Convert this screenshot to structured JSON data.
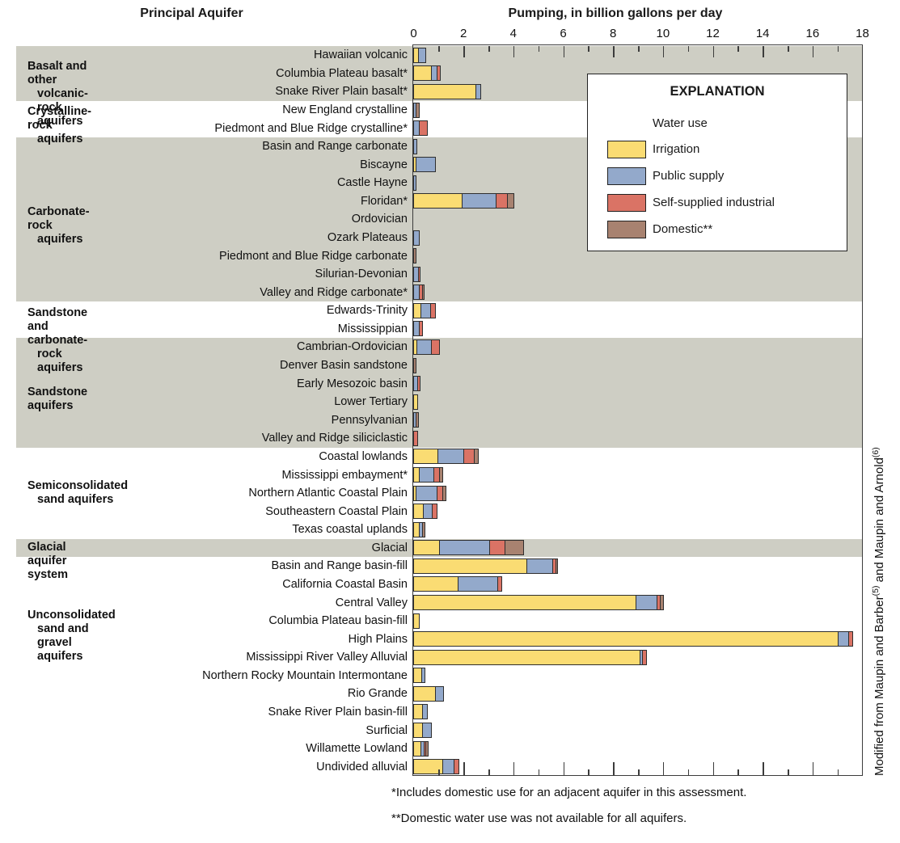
{
  "titles": {
    "left": "Principal Aquifer",
    "right": "Pumping, in billion gallons per day"
  },
  "legend": {
    "title": "EXPLANATION",
    "subtitle": "Water use",
    "items": [
      {
        "label": "Irrigation",
        "color": "#FADC73"
      },
      {
        "label": "Public supply",
        "color": "#93A9CB"
      },
      {
        "label": "Self-supplied industrial",
        "color": "#DA7365"
      },
      {
        "label": "Domestic**",
        "color": "#A88270"
      }
    ]
  },
  "footnotes": [
    "*Includes domestic use for an adjacent aquifer in this assessment.",
    "**Domestic water use was not available for all aquifers."
  ],
  "citation": {
    "parts": [
      {
        "text": "Modified from Maupin and Barber",
        "sup": false
      },
      {
        "text": "(5)",
        "sup": true
      },
      {
        "text": " and Maupin and Arnold",
        "sup": false
      },
      {
        "text": "(6)",
        "sup": true
      }
    ]
  },
  "chart_data": {
    "type": "bar",
    "orientation": "horizontal",
    "stacked": true,
    "title": "",
    "xlabel": "Pumping, in billion gallons per day",
    "ylabel": "Principal Aquifer",
    "xlim": [
      0,
      18
    ],
    "xtick_label_step": 2,
    "xtick_minor_step": 1,
    "grid": false,
    "legend_position": "upper-right-inside",
    "band_color": "#CECEC4",
    "series_names": [
      "Irrigation",
      "Public supply",
      "Self-supplied industrial",
      "Domestic**"
    ],
    "series_colors": [
      "#FADC73",
      "#93A9CB",
      "#DA7365",
      "#A88270"
    ],
    "value_units": "billion gallons per day",
    "groups": [
      {
        "label_lines": [
          "Basalt and other",
          "volcanic-rock aquifers"
        ],
        "shaded": true,
        "rows": [
          {
            "label": "Hawaiian volcanic",
            "values": [
              0.15,
              0.27,
              0,
              0
            ]
          },
          {
            "label": "Columbia Plateau basalt*",
            "values": [
              0.68,
              0.2,
              0.08,
              0
            ]
          },
          {
            "label": "Snake River Plain basalt*",
            "values": [
              2.45,
              0.17,
              0,
              0
            ]
          }
        ]
      },
      {
        "label_lines": [
          "Crystalline-rock",
          "aquifers"
        ],
        "shaded": false,
        "rows": [
          {
            "label": "New England crystalline",
            "values": [
              0,
              0.05,
              0,
              0.1
            ]
          },
          {
            "label": "Piedmont and Blue Ridge crystalline*",
            "values": [
              0,
              0.2,
              0.28,
              0
            ]
          }
        ]
      },
      {
        "label_lines": [
          "Carbonate-rock",
          "aquifers"
        ],
        "shaded": true,
        "rows": [
          {
            "label": "Basin and Range carbonate",
            "values": [
              0,
              0.1,
              0,
              0
            ]
          },
          {
            "label": "Biscayne",
            "values": [
              0.08,
              0.73,
              0,
              0
            ]
          },
          {
            "label": "Castle Hayne",
            "values": [
              0,
              0.05,
              0,
              0
            ]
          },
          {
            "label": "Floridan*",
            "values": [
              1.9,
              1.33,
              0.45,
              0.2
            ]
          },
          {
            "label": "Ordovician",
            "values": [
              0,
              0,
              0,
              0
            ]
          },
          {
            "label": "Ozark Plateaus",
            "values": [
              0,
              0.2,
              0,
              0
            ]
          },
          {
            "label": "Piedmont and Blue Ridge carbonate",
            "values": [
              0,
              0,
              0,
              0.05
            ]
          },
          {
            "label": "Silurian-Devonian",
            "values": [
              0,
              0.15,
              0.06,
              0
            ]
          },
          {
            "label": "Valley and Ridge carbonate*",
            "values": [
              0,
              0.18,
              0.1,
              0.05
            ]
          }
        ]
      },
      {
        "label_lines": [
          "Sandstone and carbonate-",
          "rock aquifers"
        ],
        "shaded": false,
        "rows": [
          {
            "label": "Edwards-Trinity",
            "values": [
              0.25,
              0.38,
              0.15,
              0
            ]
          },
          {
            "label": "Mississippian",
            "values": [
              0,
              0.2,
              0.08,
              0
            ]
          }
        ]
      },
      {
        "label_lines": [
          "Sandstone aquifers"
        ],
        "shaded": true,
        "rows": [
          {
            "label": "Cambrian-Ordovician",
            "values": [
              0.1,
              0.55,
              0.3,
              0
            ]
          },
          {
            "label": "Denver Basin sandstone",
            "values": [
              0,
              0,
              0,
              0.06
            ]
          },
          {
            "label": "Early Mesozoic basin",
            "values": [
              0,
              0.12,
              0.08,
              0
            ]
          },
          {
            "label": "Lower Tertiary",
            "values": [
              0.12,
              0,
              0,
              0
            ]
          },
          {
            "label": "Pennsylvanian",
            "values": [
              0,
              0.08,
              0,
              0.04
            ]
          },
          {
            "label": "Valley and Ridge siliciclastic",
            "values": [
              0,
              0,
              0.12,
              0
            ]
          }
        ]
      },
      {
        "label_lines": [
          "Semiconsolidated",
          "sand aquifers"
        ],
        "shaded": false,
        "rows": [
          {
            "label": "Coastal lowlands",
            "values": [
              0.95,
              1.0,
              0.37,
              0.15
            ]
          },
          {
            "label": "Mississippi embayment*",
            "values": [
              0.18,
              0.55,
              0.22,
              0.1
            ]
          },
          {
            "label": "Northern Atlantic Coastal Plain",
            "values": [
              0.08,
              0.78,
              0.22,
              0.1
            ]
          },
          {
            "label": "Southeastern Coastal Plain",
            "values": [
              0.37,
              0.32,
              0.15,
              0
            ]
          },
          {
            "label": "Texas coastal uplands",
            "values": [
              0.2,
              0.1,
              0,
              0.05
            ]
          }
        ]
      },
      {
        "label_lines": [
          "Glacial aquifer system"
        ],
        "shaded": true,
        "rows": [
          {
            "label": "Glacial",
            "values": [
              1.02,
              1.95,
              0.6,
              0.72
            ]
          }
        ]
      },
      {
        "label_lines": [
          "Unconsolidated",
          "sand and gravel",
          "aquifers"
        ],
        "shaded": false,
        "label_center_frac": 0.33,
        "rows": [
          {
            "label": "Basin and Range basin-fill",
            "values": [
              4.5,
              1.0,
              0.1,
              0.05
            ]
          },
          {
            "label": "California Coastal Basin",
            "values": [
              1.75,
              1.55,
              0.15,
              0
            ]
          },
          {
            "label": "Central Valley",
            "values": [
              8.9,
              0.8,
              0.1,
              0.1
            ]
          },
          {
            "label": "Columbia Plateau basin-fill",
            "values": [
              0.2,
              0,
              0,
              0
            ]
          },
          {
            "label": "High Plains",
            "values": [
              17.0,
              0.38,
              0.12,
              0
            ]
          },
          {
            "label": "Mississippi River Valley Alluvial",
            "values": [
              9.05,
              0.06,
              0.14,
              0
            ]
          },
          {
            "label": "Northern Rocky Mountain Intermontane",
            "values": [
              0.28,
              0.1,
              0,
              0
            ]
          },
          {
            "label": "Rio Grande",
            "values": [
              0.85,
              0.28,
              0,
              0
            ]
          },
          {
            "label": "Snake River Plain basin-fill",
            "values": [
              0.34,
              0.15,
              0,
              0
            ]
          },
          {
            "label": "Surficial",
            "values": [
              0.34,
              0.3,
              0,
              0
            ]
          },
          {
            "label": "Willamette Lowland",
            "values": [
              0.26,
              0.1,
              0.04,
              0.04
            ]
          },
          {
            "label": "Undivided alluvial",
            "values": [
              1.13,
              0.43,
              0.16,
              0
            ]
          }
        ]
      }
    ]
  }
}
